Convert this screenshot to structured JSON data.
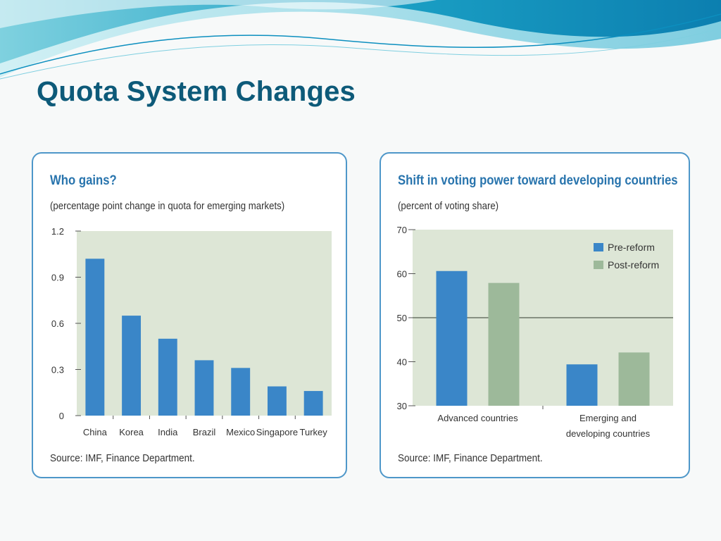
{
  "slide": {
    "title": "Quota System Changes"
  },
  "colors": {
    "accent": "#0d5a79",
    "bar_pre": "#3a86c8",
    "bar_post": "#9db99a",
    "plot_bg": "#dde6d6",
    "panel_border": "#4e97c9"
  },
  "panels": {
    "left": {
      "title": "Who gains?",
      "subtitle": "(percentage point change in quota for emerging markets)",
      "source": "Source: IMF, Finance Department."
    },
    "right": {
      "title": "Shift in voting power toward developing countries",
      "subtitle": "(percent of voting share)",
      "source": "Source: IMF, Finance Department."
    }
  },
  "chart_data": [
    {
      "type": "bar",
      "title": "Who gains?",
      "subtitle": "(percentage point change in quota for emerging markets)",
      "categories": [
        "China",
        "Korea",
        "India",
        "Brazil",
        "Mexico",
        "Singapore",
        "Turkey"
      ],
      "values": [
        1.02,
        0.65,
        0.5,
        0.36,
        0.31,
        0.19,
        0.16
      ],
      "yticks": [
        "0",
        "0.3",
        "0.6",
        "0.9",
        "1.2"
      ],
      "ylim": [
        0,
        1.2
      ],
      "grid": false
    },
    {
      "type": "bar",
      "title": "Shift in voting power toward developing countries",
      "subtitle": "(percent of voting share)",
      "categories": [
        "Advanced countries",
        "Emerging and developing countries"
      ],
      "category_lines": [
        [
          "Advanced countries"
        ],
        [
          "Emerging and",
          "developing countries"
        ]
      ],
      "series": [
        {
          "name": "Pre-reform",
          "values": [
            60.6,
            39.4
          ]
        },
        {
          "name": "Post-reform",
          "values": [
            57.9,
            42.1
          ]
        }
      ],
      "yticks": [
        "30",
        "40",
        "50",
        "60",
        "70"
      ],
      "ylim": [
        30,
        70
      ],
      "reference_line": 50,
      "legend": "top-right",
      "grid": false
    }
  ]
}
